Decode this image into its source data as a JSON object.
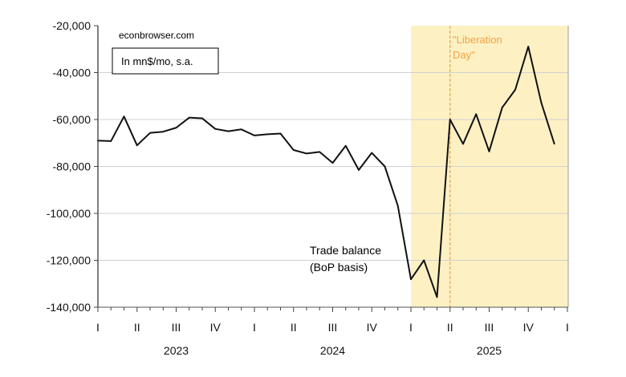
{
  "chart_data": {
    "type": "line",
    "title": "",
    "xlabel": "",
    "ylabel": "",
    "ylim": [
      -140000,
      -20000
    ],
    "yticks": [
      -20000,
      -40000,
      -60000,
      -80000,
      -100000,
      -120000,
      -140000
    ],
    "ytick_labels": [
      "-20,000",
      "-40,000",
      "-60,000",
      "-80,000",
      "-100,000",
      "-120,000",
      "-140,000"
    ],
    "quarter_labels": [
      "I",
      "II",
      "III",
      "IV",
      "I",
      "II",
      "III",
      "IV",
      "I",
      "II",
      "III",
      "IV",
      "I"
    ],
    "year_labels": [
      "2023",
      "2024",
      "2025"
    ],
    "grid": true,
    "source": "econbrowser.com",
    "units_note": "In mn$/mo, s.a.",
    "series": [
      {
        "name": "Trade balance (BoP basis)",
        "label_line1": "Trade balance",
        "label_line2": "(BoP basis)",
        "color": "#111111",
        "start": "2023-01",
        "values": [
          -69000,
          -69200,
          -58700,
          -71000,
          -65700,
          -65200,
          -63500,
          -59200,
          -59500,
          -64000,
          -65000,
          -64200,
          -66800,
          -66300,
          -66000,
          -73000,
          -74500,
          -73800,
          -78500,
          -71200,
          -81500,
          -74200,
          -80000,
          -96800,
          -128100,
          -120000,
          -135700,
          -60000,
          -70400,
          -57700,
          -73600,
          -54900,
          -47300,
          -28900,
          -52900,
          -70400
        ]
      }
    ],
    "shaded_region": {
      "from": "2025-01",
      "to": "2026-01",
      "color": "#fdf1c4"
    },
    "event_line": {
      "at": "2025-04",
      "label_line1": "\"Liberation",
      "label_line2": "Day\"",
      "color": "#f4a040"
    }
  }
}
